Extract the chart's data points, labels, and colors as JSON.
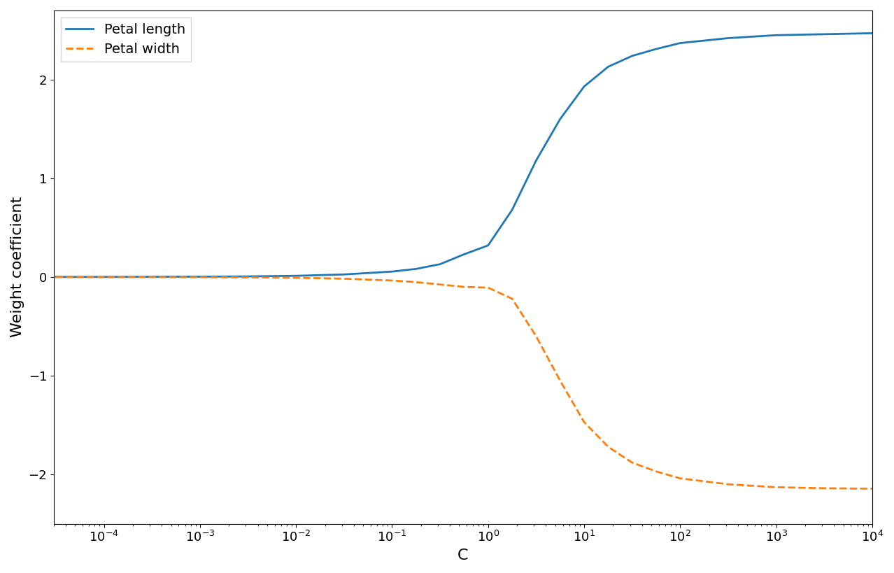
{
  "title": "",
  "xlabel": "C",
  "ylabel": "Weight coefficient",
  "legend_petal_length": "Petal length",
  "legend_petal_width": "Petal width",
  "petal_length_color": "#1f77b4",
  "petal_width_color": "#ff7f0e",
  "background_color": "#ffffff",
  "C_log_values": [
    -4.5,
    -4.0,
    -3.5,
    -3.0,
    -2.5,
    -2.0,
    -1.5,
    -1.0,
    -0.75,
    -0.5,
    -0.25,
    0.0,
    0.25,
    0.5,
    0.75,
    1.0,
    1.25,
    1.5,
    1.75,
    2.0,
    2.5,
    3.0,
    3.5,
    4.0
  ],
  "petal_length_coef": [
    0.0007,
    0.001,
    0.002,
    0.003,
    0.006,
    0.012,
    0.026,
    0.055,
    0.082,
    0.13,
    0.23,
    0.32,
    0.68,
    1.18,
    1.6,
    1.93,
    2.13,
    2.24,
    2.31,
    2.37,
    2.42,
    2.45,
    2.46,
    2.47
  ],
  "petal_width_coef": [
    -0.0004,
    -0.0006,
    -0.001,
    -0.002,
    -0.004,
    -0.008,
    -0.017,
    -0.036,
    -0.052,
    -0.076,
    -0.1,
    -0.108,
    -0.22,
    -0.6,
    -1.05,
    -1.47,
    -1.72,
    -1.88,
    -1.97,
    -2.04,
    -2.1,
    -2.13,
    -2.14,
    -2.145
  ],
  "xlim": [
    3e-05,
    10000.0
  ],
  "ylim": [
    -2.5,
    2.7
  ]
}
